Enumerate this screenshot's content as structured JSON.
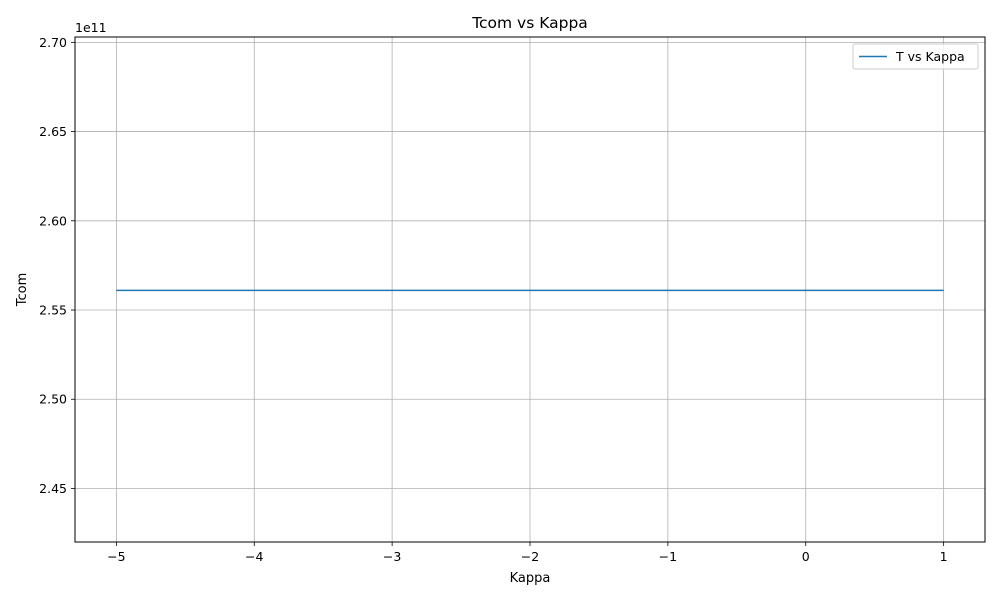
{
  "chart_data": {
    "type": "line",
    "title": "Tcom vs Kappa",
    "xlabel": "Kappa",
    "ylabel": "Tcom",
    "y_offset_label": "1e11",
    "x_ticks": [
      -5,
      -4,
      -3,
      -2,
      -1,
      0,
      1
    ],
    "x_tick_labels": [
      "−5",
      "−4",
      "−3",
      "−2",
      "−1",
      "0",
      "1"
    ],
    "y_ticks": [
      245000000000.0,
      250000000000.0,
      255000000000.0,
      260000000000.0,
      265000000000.0,
      270000000000.0
    ],
    "y_tick_labels": [
      "2.45",
      "2.50",
      "2.55",
      "2.60",
      "2.65",
      "2.70"
    ],
    "xlim": [
      -5.3,
      1.3
    ],
    "ylim": [
      242000000000.0,
      270300000000.0
    ],
    "grid": true,
    "legend_position": "top-right",
    "series": [
      {
        "name": "T vs Kappa",
        "color": "#1f77b4",
        "x": [
          -5,
          -4,
          -3,
          -2,
          -1,
          0,
          1
        ],
        "y": [
          256100000000.0,
          256100000000.0,
          256100000000.0,
          256100000000.0,
          256100000000.0,
          256100000000.0,
          256100000000.0
        ]
      }
    ]
  }
}
